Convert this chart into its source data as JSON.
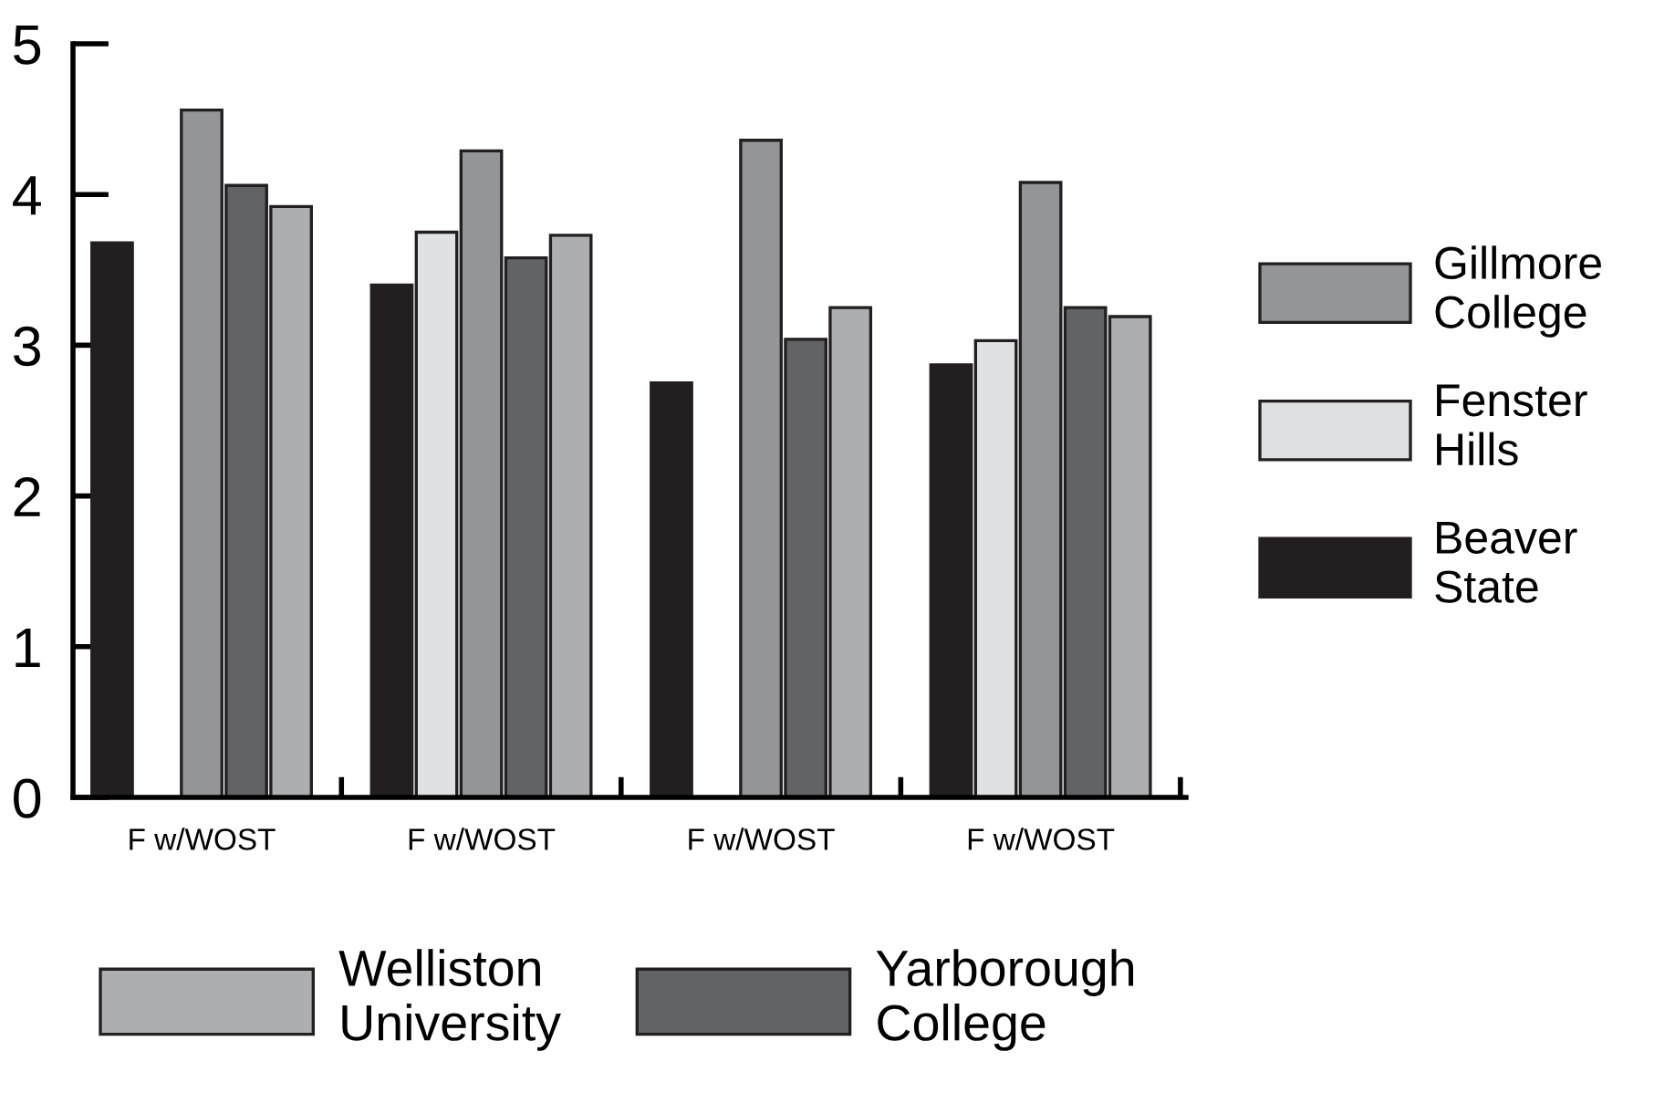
{
  "chart_data": {
    "type": "bar",
    "categories": [
      "F w/WOST",
      "F w/WOST",
      "F w/WOST",
      "F w/WOST"
    ],
    "series": [
      {
        "name": "Beaver State",
        "color": "#231f20",
        "values": [
          3.68,
          3.4,
          2.75,
          2.87
        ]
      },
      {
        "name": "Fenster Hills",
        "color": "#e0e1e2",
        "values": [
          null,
          3.75,
          null,
          3.03
        ]
      },
      {
        "name": "Gillmore College",
        "color": "#939598",
        "values": [
          4.56,
          4.29,
          4.36,
          4.08
        ]
      },
      {
        "name": "Yarborough College",
        "color": "#626366",
        "values": [
          4.06,
          3.58,
          3.04,
          3.25
        ]
      },
      {
        "name": "Welliston University",
        "color": "#adaeb1",
        "values": [
          3.92,
          3.73,
          3.25,
          3.19
        ]
      }
    ],
    "ylim": [
      0,
      5
    ],
    "yticks": [
      0,
      1,
      2,
      3,
      4,
      5
    ],
    "grid": false,
    "legend": "right"
  }
}
